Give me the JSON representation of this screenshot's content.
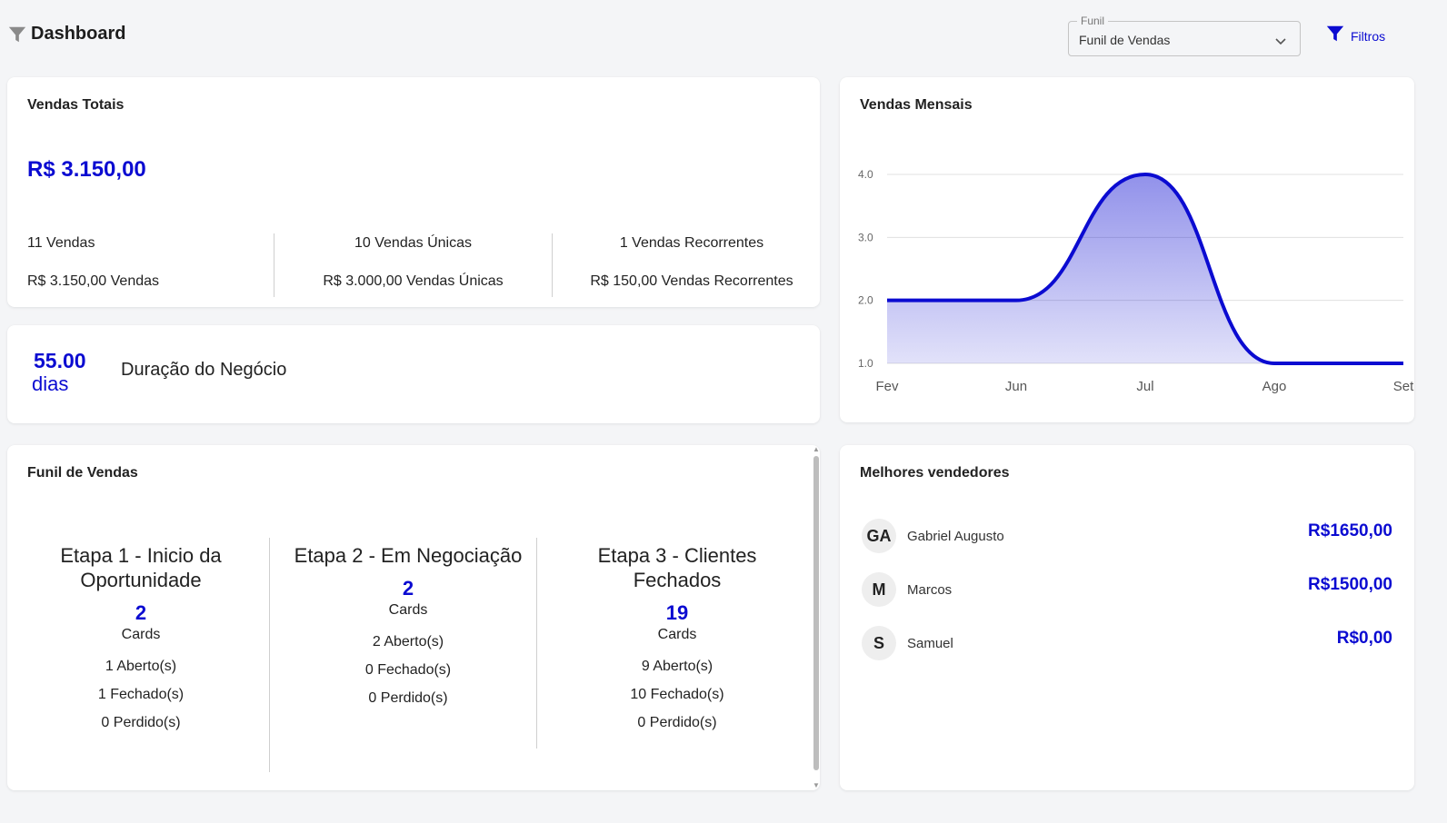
{
  "header": {
    "title": "Dashboard",
    "funil_select": {
      "legend": "Funil",
      "value": "Funil de Vendas"
    },
    "filtros_label": "Filtros"
  },
  "colors": {
    "accent": "#0b0bd1",
    "background": "#f4f5f7",
    "card": "#ffffff"
  },
  "vendas_totais": {
    "title": "Vendas Totais",
    "amount": "R$ 3.150,00",
    "stats": [
      {
        "count": "11 Vendas",
        "value": "R$ 3.150,00 Vendas"
      },
      {
        "count": "10 Vendas Únicas",
        "value": "R$ 3.000,00 Vendas Únicas"
      },
      {
        "count": "1 Vendas Recorrentes",
        "value": "R$ 150,00 Vendas Recorrentes"
      }
    ]
  },
  "duracao": {
    "value": "55.00",
    "unit": "dias",
    "label": "Duração do Negócio"
  },
  "vendas_mensais": {
    "title": "Vendas Mensais"
  },
  "chart_data": {
    "type": "area",
    "title": "Vendas Mensais",
    "x": [
      "Fev",
      "Jun",
      "Jul",
      "Ago",
      "Set"
    ],
    "y_ticks": [
      "1.0",
      "2.0",
      "3.0",
      "4.0"
    ],
    "series": [
      {
        "values": [
          2,
          2,
          4,
          1,
          1
        ]
      }
    ],
    "ylim": [
      1,
      4
    ],
    "grid": true,
    "color": "#0b0bd1"
  },
  "funil": {
    "title": "Funil de Vendas",
    "stages": [
      {
        "name_line1": "Etapa 1 - Inicio da",
        "name_line2": "Oportunidade",
        "count": "2",
        "cards_label": "Cards",
        "aberto": "1 Aberto(s)",
        "fechado": "1 Fechado(s)",
        "perdido": "0 Perdido(s)"
      },
      {
        "name_line1": "Etapa 2 - Em Negociação",
        "name_line2": "",
        "count": "2",
        "cards_label": "Cards",
        "aberto": "2 Aberto(s)",
        "fechado": "0 Fechado(s)",
        "perdido": "0 Perdido(s)"
      },
      {
        "name_line1": "Etapa 3 - Clientes",
        "name_line2": "Fechados",
        "count": "19",
        "cards_label": "Cards",
        "aberto": "9 Aberto(s)",
        "fechado": "10 Fechado(s)",
        "perdido": "0 Perdido(s)"
      }
    ]
  },
  "vendedores": {
    "title": "Melhores vendedores",
    "items": [
      {
        "initials": "GA",
        "name": "Gabriel Augusto",
        "amount": "R$1650,00"
      },
      {
        "initials": "M",
        "name": "Marcos",
        "amount": "R$1500,00"
      },
      {
        "initials": "S",
        "name": "Samuel",
        "amount": "R$0,00"
      }
    ]
  }
}
